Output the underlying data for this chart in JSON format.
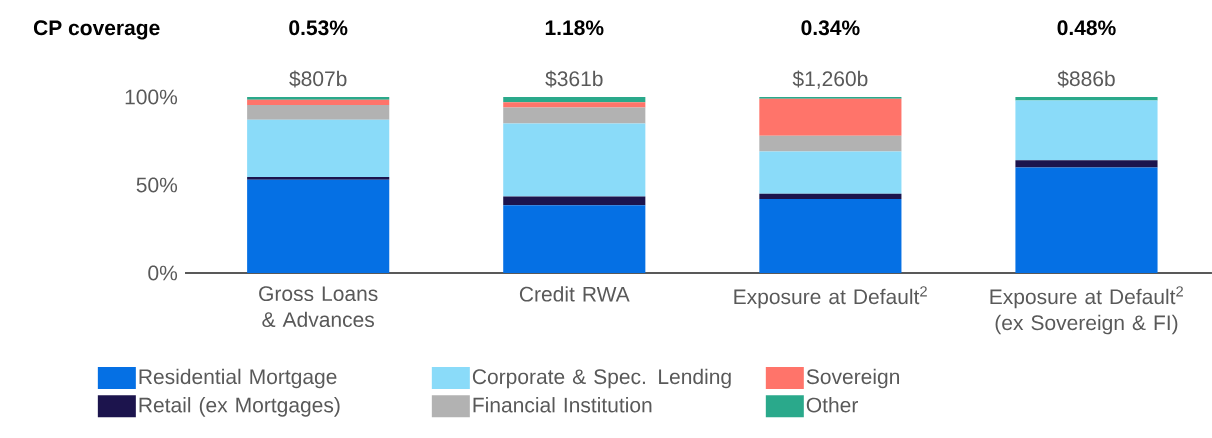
{
  "chart_data": {
    "type": "bar",
    "stacked": true,
    "categories": [
      "Gross Loans & Advances",
      "Credit RWA",
      "Exposure at Default$^{2}$",
      "Exposure at Default$^{2}$ (ex Sovereign & FI)"
    ],
    "series": [
      {
        "name": "Residential Mortgage",
        "color": "#0570e4",
        "values": [
          53,
          38.5,
          42,
          60
        ]
      },
      {
        "name": "Retail (ex Mortgages)",
        "color": "#1c144d",
        "values": [
          1.5,
          5,
          3,
          4
        ]
      },
      {
        "name": "Corporate & Spec. Lending",
        "color": "#8adbf9",
        "values": [
          32.5,
          41.5,
          24,
          34
        ]
      },
      {
        "name": "Financial Institution",
        "color": "#b2b2b2",
        "values": [
          8.5,
          9,
          9,
          0
        ]
      },
      {
        "name": "Sovereign",
        "color": "#ff746a",
        "values": [
          3,
          3,
          21,
          0
        ]
      },
      {
        "name": "Other",
        "color": "#2aa98b",
        "values": [
          1.5,
          3,
          1,
          2
        ]
      }
    ],
    "ylim": [
      0,
      100
    ],
    "yticks": [
      {
        "value": 0,
        "label": "0%"
      },
      {
        "value": 50,
        "label": "50%"
      },
      {
        "value": 100,
        "label": "100%"
      }
    ],
    "annotations": [
      "CP coverage",
      "0.53%",
      "1.18%",
      "0.34%",
      "0.48%",
      "$807b",
      "$361b",
      "$1,260b",
      "$886b"
    ],
    "legend": "bottom"
  }
}
